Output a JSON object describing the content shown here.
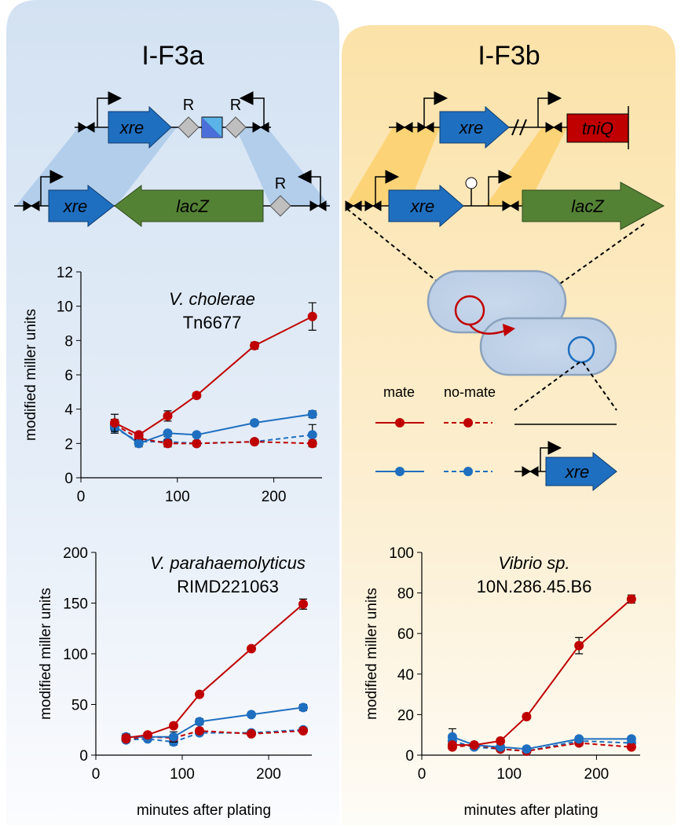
{
  "diagram": {
    "left_title": "I-F3a",
    "right_title": "I-F3b",
    "gene_xre": "xre",
    "gene_lacZ": "lacZ",
    "gene_tniQ": "tniQ",
    "site_R": "R"
  },
  "legend": {
    "mate": "mate",
    "no_mate": "no-mate"
  },
  "chart_data": [
    {
      "type": "line",
      "title": "V. cholerae",
      "subtitle": "Tn6677",
      "ylabel": "modified miller units",
      "x": [
        35,
        60,
        90,
        120,
        180,
        240
      ],
      "xlim": [
        0,
        250
      ],
      "xticks": [
        0,
        100,
        200
      ],
      "ylim": [
        0,
        12
      ],
      "yticks": [
        0,
        2,
        4,
        6,
        8,
        10,
        12
      ],
      "series": [
        {
          "color": "#c00000",
          "dashed": false,
          "values": [
            3.2,
            2.5,
            3.6,
            4.8,
            7.7,
            9.4
          ],
          "errors": [
            0.5,
            0.1,
            0.3,
            0.15,
            0.2,
            0.8
          ]
        },
        {
          "color": "#1f6fc0",
          "dashed": false,
          "values": [
            3.0,
            2.0,
            2.6,
            2.5,
            3.2,
            3.7
          ],
          "errors": [
            0.3,
            0.2,
            0.1,
            0.1,
            0.15,
            0.2
          ]
        },
        {
          "color": "#c00000",
          "dashed": true,
          "values": [
            3.1,
            2.3,
            2.0,
            2.0,
            2.1,
            2.0
          ],
          "errors": [
            0.3,
            0.2,
            0.2,
            0.15,
            0.1,
            0.2
          ]
        },
        {
          "color": "#1f6fc0",
          "dashed": true,
          "values": [
            2.9,
            2.1,
            2.1,
            2.0,
            2.1,
            2.5
          ],
          "errors": [
            0.3,
            0.2,
            0.3,
            0.1,
            0.1,
            0.6
          ]
        }
      ]
    },
    {
      "type": "line",
      "title": "V. parahaemolyticus",
      "subtitle": "RIMD221063",
      "ylabel": "modified miller units",
      "xlabel": "minutes after plating",
      "x": [
        35,
        60,
        90,
        120,
        180,
        240
      ],
      "xlim": [
        0,
        250
      ],
      "xticks": [
        0,
        100,
        200
      ],
      "ylim": [
        0,
        200
      ],
      "yticks": [
        0,
        50,
        100,
        150,
        200
      ],
      "series": [
        {
          "color": "#c00000",
          "dashed": false,
          "values": [
            17,
            20,
            29,
            60,
            105,
            149
          ],
          "errors": [
            3,
            2,
            2,
            2,
            2,
            5
          ]
        },
        {
          "color": "#1f6fc0",
          "dashed": false,
          "values": [
            18,
            18,
            18,
            33,
            40,
            47
          ],
          "errors": [
            3,
            2,
            5,
            3,
            2,
            3
          ]
        },
        {
          "color": "#c00000",
          "dashed": true,
          "values": [
            16,
            18,
            17,
            24,
            21,
            24
          ],
          "errors": [
            2,
            2,
            2,
            2,
            2,
            2
          ]
        },
        {
          "color": "#1f6fc0",
          "dashed": true,
          "values": [
            15,
            16,
            13,
            22,
            22,
            25
          ],
          "errors": [
            2,
            2,
            3,
            2,
            2,
            2
          ]
        }
      ]
    },
    {
      "type": "line",
      "title": "Vibrio sp.",
      "subtitle": "10N.286.45.B6",
      "ylabel": "modified miller units",
      "xlabel": "minutes after plating",
      "x": [
        35,
        60,
        90,
        120,
        180,
        240
      ],
      "xlim": [
        0,
        250
      ],
      "xticks": [
        0,
        100,
        200
      ],
      "ylim": [
        0,
        100
      ],
      "yticks": [
        0,
        20,
        40,
        60,
        80,
        100
      ],
      "series": [
        {
          "color": "#c00000",
          "dashed": false,
          "values": [
            5,
            5,
            7,
            19,
            54,
            77
          ],
          "errors": [
            1,
            1,
            1,
            1,
            4,
            2
          ]
        },
        {
          "color": "#1f6fc0",
          "dashed": false,
          "values": [
            9,
            5,
            4,
            3,
            8,
            8
          ],
          "errors": [
            4,
            1,
            1,
            1,
            1,
            1
          ]
        },
        {
          "color": "#c00000",
          "dashed": true,
          "values": [
            4,
            5,
            3,
            2,
            6,
            4
          ],
          "errors": [
            1,
            1,
            1,
            1,
            1,
            1
          ]
        },
        {
          "color": "#1f6fc0",
          "dashed": true,
          "values": [
            7,
            4,
            3,
            2,
            7,
            6
          ],
          "errors": [
            1,
            1,
            1,
            1,
            1,
            1
          ]
        }
      ]
    }
  ]
}
